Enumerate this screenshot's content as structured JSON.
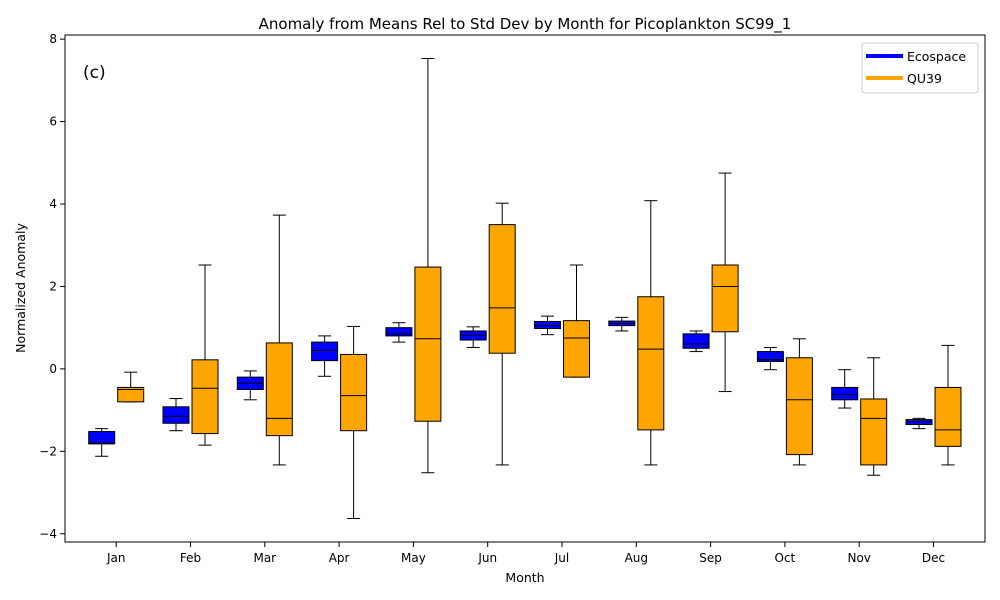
{
  "chart_data": {
    "type": "boxplot",
    "title": "Anomaly from Means Rel to Std Dev by Month for Picoplankton SC99_1",
    "xlabel": "Month",
    "ylabel": "Normalized Anomaly",
    "panel_label": "(c)",
    "ylim": [
      -4.2,
      8.1
    ],
    "yticks": [
      -4,
      -2,
      0,
      2,
      4,
      6,
      8
    ],
    "categories": [
      "Jan",
      "Feb",
      "Mar",
      "Apr",
      "May",
      "Jun",
      "Jul",
      "Aug",
      "Sep",
      "Oct",
      "Nov",
      "Dec"
    ],
    "legend_position": "top-right",
    "grid": false,
    "series": [
      {
        "name": "Ecospace",
        "color": "#0000ff",
        "boxes": [
          {
            "whislo": -2.12,
            "q1": -1.82,
            "med": -1.8,
            "q3": -1.52,
            "whishi": -1.45
          },
          {
            "whislo": -1.5,
            "q1": -1.32,
            "med": -1.15,
            "q3": -0.92,
            "whishi": -0.72
          },
          {
            "whislo": -0.75,
            "q1": -0.5,
            "med": -0.35,
            "q3": -0.2,
            "whishi": -0.05
          },
          {
            "whislo": -0.18,
            "q1": 0.2,
            "med": 0.45,
            "q3": 0.65,
            "whishi": 0.8
          },
          {
            "whislo": 0.65,
            "q1": 0.8,
            "med": 0.85,
            "q3": 1.0,
            "whishi": 1.12
          },
          {
            "whislo": 0.52,
            "q1": 0.7,
            "med": 0.82,
            "q3": 0.92,
            "whishi": 1.02
          },
          {
            "whislo": 0.83,
            "q1": 0.98,
            "med": 1.05,
            "q3": 1.15,
            "whishi": 1.28
          },
          {
            "whislo": 0.92,
            "q1": 1.05,
            "med": 1.1,
            "q3": 1.16,
            "whishi": 1.25
          },
          {
            "whislo": 0.42,
            "q1": 0.5,
            "med": 0.6,
            "q3": 0.85,
            "whishi": 0.92
          },
          {
            "whislo": -0.02,
            "q1": 0.18,
            "med": 0.22,
            "q3": 0.42,
            "whishi": 0.52
          },
          {
            "whislo": -0.95,
            "q1": -0.75,
            "med": -0.62,
            "q3": -0.45,
            "whishi": -0.02
          },
          {
            "whislo": -1.45,
            "q1": -1.35,
            "med": -1.28,
            "q3": -1.23,
            "whishi": -1.2
          }
        ]
      },
      {
        "name": "QU39",
        "color": "#ffa500",
        "boxes": [
          {
            "whislo": -0.8,
            "q1": -0.8,
            "med": -0.5,
            "q3": -0.45,
            "whishi": -0.08
          },
          {
            "whislo": -1.85,
            "q1": -1.57,
            "med": -0.47,
            "q3": 0.22,
            "whishi": 2.52
          },
          {
            "whislo": -2.33,
            "q1": -1.62,
            "med": -1.2,
            "q3": 0.63,
            "whishi": 3.73
          },
          {
            "whislo": -3.63,
            "q1": -1.5,
            "med": -0.65,
            "q3": 0.35,
            "whishi": 1.03
          },
          {
            "whislo": -2.52,
            "q1": -1.27,
            "med": 0.73,
            "q3": 2.47,
            "whishi": 7.53
          },
          {
            "whislo": -2.33,
            "q1": 0.38,
            "med": 1.48,
            "q3": 3.5,
            "whishi": 4.02
          },
          {
            "whislo": -0.2,
            "q1": -0.2,
            "med": 0.75,
            "q3": 1.17,
            "whishi": 2.52
          },
          {
            "whislo": -2.33,
            "q1": -1.48,
            "med": 0.48,
            "q3": 1.75,
            "whishi": 4.08
          },
          {
            "whislo": -0.55,
            "q1": 0.9,
            "med": 2.0,
            "q3": 2.52,
            "whishi": 4.75
          },
          {
            "whislo": -2.33,
            "q1": -2.08,
            "med": -0.75,
            "q3": 0.27,
            "whishi": 0.73
          },
          {
            "whislo": -2.58,
            "q1": -2.33,
            "med": -1.2,
            "q3": -0.73,
            "whishi": 0.27
          },
          {
            "whislo": -2.33,
            "q1": -1.88,
            "med": -1.48,
            "q3": -0.45,
            "whishi": 0.57
          }
        ]
      }
    ]
  }
}
